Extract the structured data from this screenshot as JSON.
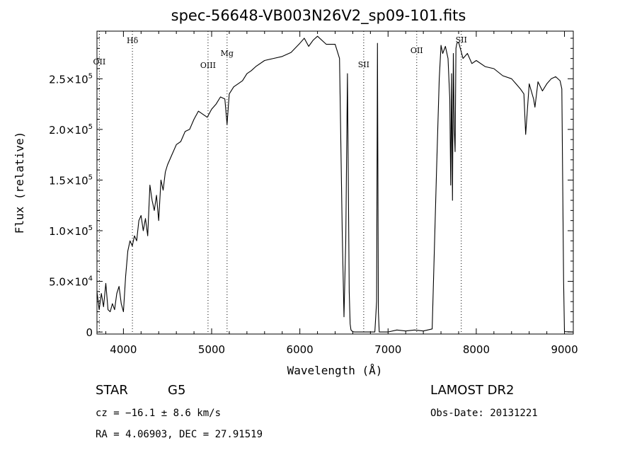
{
  "title": "spec-56648-VB003N26V2_sp09-101.fits",
  "footer": {
    "object_class": "STAR",
    "subclass": "G5",
    "cz_line": "cz = −16.1 ± 8.6 km/s",
    "coord_line": "RA =    4.06903, DEC =   27.91519",
    "survey": "LAMOST DR2",
    "obs_date": "Obs-Date: 20131221"
  },
  "chart_data": {
    "type": "line",
    "xlabel": "Wavelength (Å)",
    "ylabel": "Flux (relative)",
    "xlim": [
      3700,
      9100
    ],
    "ylim": [
      -2000,
      297000
    ],
    "grid": false,
    "x_ticks": [
      4000,
      5000,
      6000,
      7000,
      8000,
      9000
    ],
    "y_ticks": [
      {
        "value": 0,
        "mantissa": "0",
        "exponent": ""
      },
      {
        "value": 50000,
        "mantissa": "5.0×10",
        "exponent": "4"
      },
      {
        "value": 100000,
        "mantissa": "1.0×10",
        "exponent": "5"
      },
      {
        "value": 150000,
        "mantissa": "1.5×10",
        "exponent": "5"
      },
      {
        "value": 200000,
        "mantissa": "2.0×10",
        "exponent": "5"
      },
      {
        "value": 250000,
        "mantissa": "2.5×10",
        "exponent": "5"
      }
    ],
    "line_markers": [
      {
        "label": "OII",
        "wavelength": 3727
      },
      {
        "label": "Hδ",
        "wavelength": 4102
      },
      {
        "label": "OIII",
        "wavelength": 4959
      },
      {
        "label": "Mg",
        "wavelength": 5175
      },
      {
        "label": "SII",
        "wavelength": 6724
      },
      {
        "label": "OII",
        "wavelength": 7325
      },
      {
        "label": "SII",
        "wavelength": 7830
      }
    ],
    "series": [
      {
        "x": [
          3700,
          3725,
          3750,
          3775,
          3800,
          3825,
          3850,
          3875,
          3900,
          3925,
          3950,
          3975,
          4000,
          4025,
          4050,
          4075,
          4100,
          4125,
          4150,
          4175,
          4200,
          4225,
          4250,
          4275,
          4300,
          4325,
          4350,
          4375,
          4400,
          4425,
          4450,
          4475,
          4500,
          4550,
          4600,
          4650,
          4700,
          4750,
          4800,
          4850,
          4900,
          4950,
          5000,
          5050,
          5100,
          5150,
          5175,
          5200,
          5250,
          5300,
          5350,
          5400,
          5450,
          5500,
          5600,
          5700,
          5800,
          5900,
          6000,
          6050,
          6100,
          6150,
          6200,
          6300,
          6400,
          6450,
          6480,
          6500,
          6520,
          6540,
          6560,
          6570,
          6580,
          6600,
          6620,
          6650,
          6700,
          6750,
          6800,
          6850,
          6870,
          6880,
          6890,
          6900,
          6950,
          7000,
          7100,
          7200,
          7300,
          7400,
          7500,
          7550,
          7580,
          7600,
          7620,
          7650,
          7680,
          7700,
          7710,
          7720,
          7730,
          7740,
          7750,
          7760,
          7770,
          7780,
          7800,
          7850,
          7900,
          7950,
          8000,
          8100,
          8200,
          8300,
          8400,
          8450,
          8500,
          8540,
          8560,
          8600,
          8650,
          8665,
          8700,
          8750,
          8800,
          8850,
          8900,
          8950,
          8970,
          8990,
          9000,
          9010,
          9100
        ],
        "y": [
          40000,
          22000,
          38000,
          25000,
          48000,
          22000,
          20000,
          28000,
          22000,
          38000,
          45000,
          28000,
          20000,
          55000,
          80000,
          90000,
          85000,
          95000,
          90000,
          110000,
          115000,
          100000,
          112000,
          95000,
          145000,
          130000,
          120000,
          135000,
          110000,
          150000,
          140000,
          158000,
          165000,
          175000,
          185000,
          188000,
          198000,
          200000,
          210000,
          218000,
          215000,
          212000,
          220000,
          225000,
          232000,
          230000,
          205000,
          235000,
          242000,
          245000,
          248000,
          255000,
          258000,
          262000,
          268000,
          270000,
          272000,
          276000,
          285000,
          290000,
          282000,
          288000,
          292000,
          284000,
          284000,
          270000,
          100000,
          15000,
          90000,
          255000,
          40000,
          8000,
          2000,
          300,
          0,
          0,
          0,
          0,
          0,
          0,
          30000,
          285000,
          20000,
          0,
          0,
          0,
          2000,
          1000,
          2000,
          1000,
          3000,
          160000,
          250000,
          283000,
          275000,
          282000,
          270000,
          230000,
          145000,
          255000,
          130000,
          275000,
          200000,
          178000,
          280000,
          285000,
          286000,
          270000,
          275000,
          265000,
          268000,
          262000,
          260000,
          253000,
          250000,
          245000,
          240000,
          235000,
          195000,
          245000,
          230000,
          222000,
          247000,
          238000,
          245000,
          250000,
          252000,
          248000,
          240000,
          50000,
          500,
          300,
          0
        ]
      }
    ]
  }
}
